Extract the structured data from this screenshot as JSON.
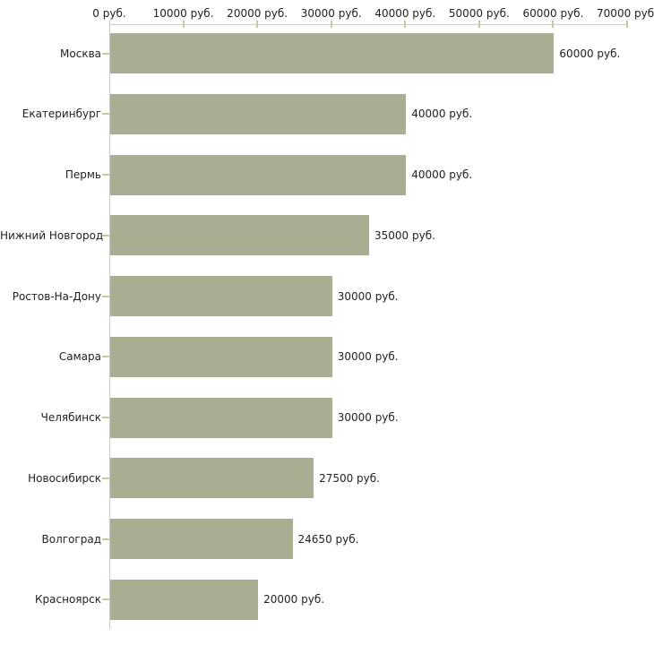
{
  "chart_data": {
    "type": "bar",
    "orientation": "horizontal",
    "title": "",
    "categories": [
      "Москва",
      "Екатеринбург",
      "Пермь",
      "Нижний Новгород",
      "Ростов-На-Дону",
      "Самара",
      "Челябинск",
      "Новосибирск",
      "Волгоград",
      "Красноярск"
    ],
    "values": [
      60000,
      40000,
      40000,
      35000,
      30000,
      30000,
      30000,
      27500,
      24650,
      20000
    ],
    "value_labels": [
      "60000 руб.",
      "40000 руб.",
      "40000 руб.",
      "35000 руб.",
      "30000 руб.",
      "30000 руб.",
      "30000 руб.",
      "27500 руб.",
      "24650 руб.",
      "20000 руб."
    ],
    "x_ticks": [
      0,
      10000,
      20000,
      30000,
      40000,
      50000,
      60000,
      70000
    ],
    "x_tick_labels": [
      "0 руб.",
      "10000 руб.",
      "20000 руб.",
      "30000 руб.",
      "40000 руб.",
      "50000 руб.",
      "60000 руб.",
      "70000 руб."
    ],
    "xlim": [
      0,
      70000
    ],
    "unit": "руб.",
    "xlabel": "",
    "ylabel": "",
    "legend": "none",
    "grid": "off",
    "colors": {
      "bar_fill": "#a9ae93",
      "axis_line": "#c9c9c9",
      "tick_mark": "#c5c7a0",
      "text": "#1f1f1f",
      "background": "#ffffff"
    }
  }
}
